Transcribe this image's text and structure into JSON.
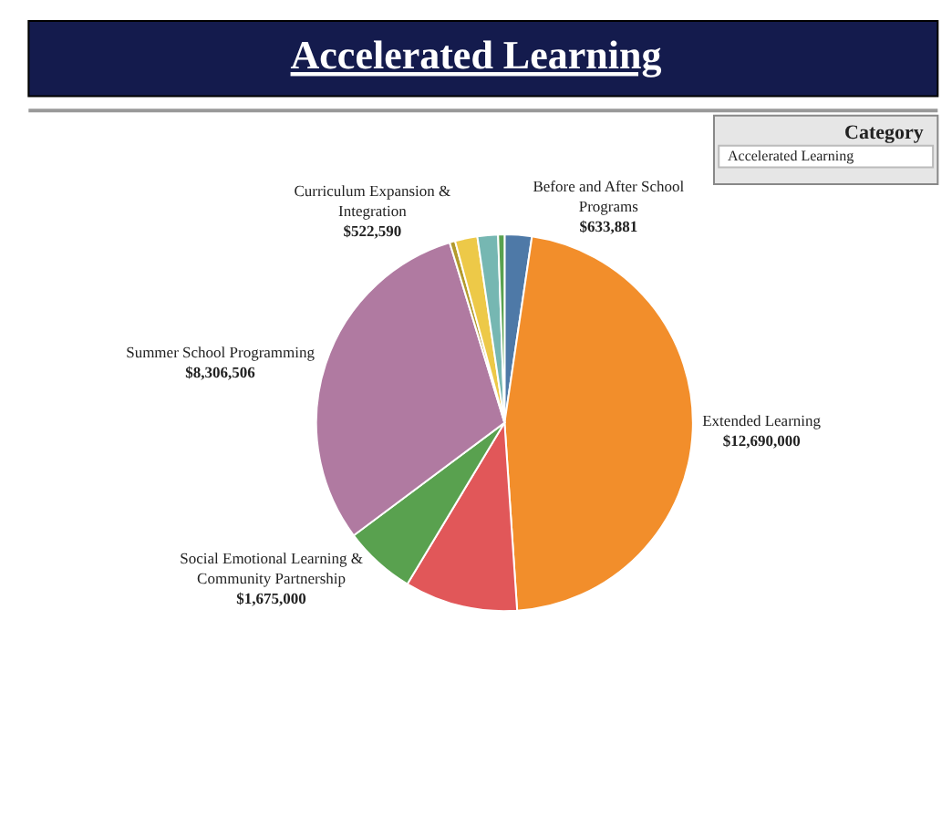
{
  "chart_data": {
    "type": "pie",
    "title": "Accelerated Learning",
    "categories": [
      "Before and After School Programs",
      "Extended Learning",
      null,
      "Social Emotional Learning & Community Partnership",
      "Summer School Programming",
      null,
      "Curriculum Expansion & Integration",
      null,
      null
    ],
    "values": [
      633881,
      12690000,
      2640000,
      1675000,
      8306506,
      130000,
      522590,
      480000,
      150000
    ],
    "value_labels": [
      "$633,881",
      "$12,690,000",
      null,
      "$1,675,000",
      "$8,306,506",
      null,
      "$522,590",
      null,
      null
    ],
    "colors": [
      "#4e79a7",
      "#f28e2b",
      "#e15759",
      "#59a14f",
      "#b07aa1",
      "#b39a2d",
      "#edc948",
      "#76b7b2",
      "#59a14f"
    ],
    "annotations": [
      "Category",
      "Accelerated Learning"
    ],
    "legend": false
  }
}
